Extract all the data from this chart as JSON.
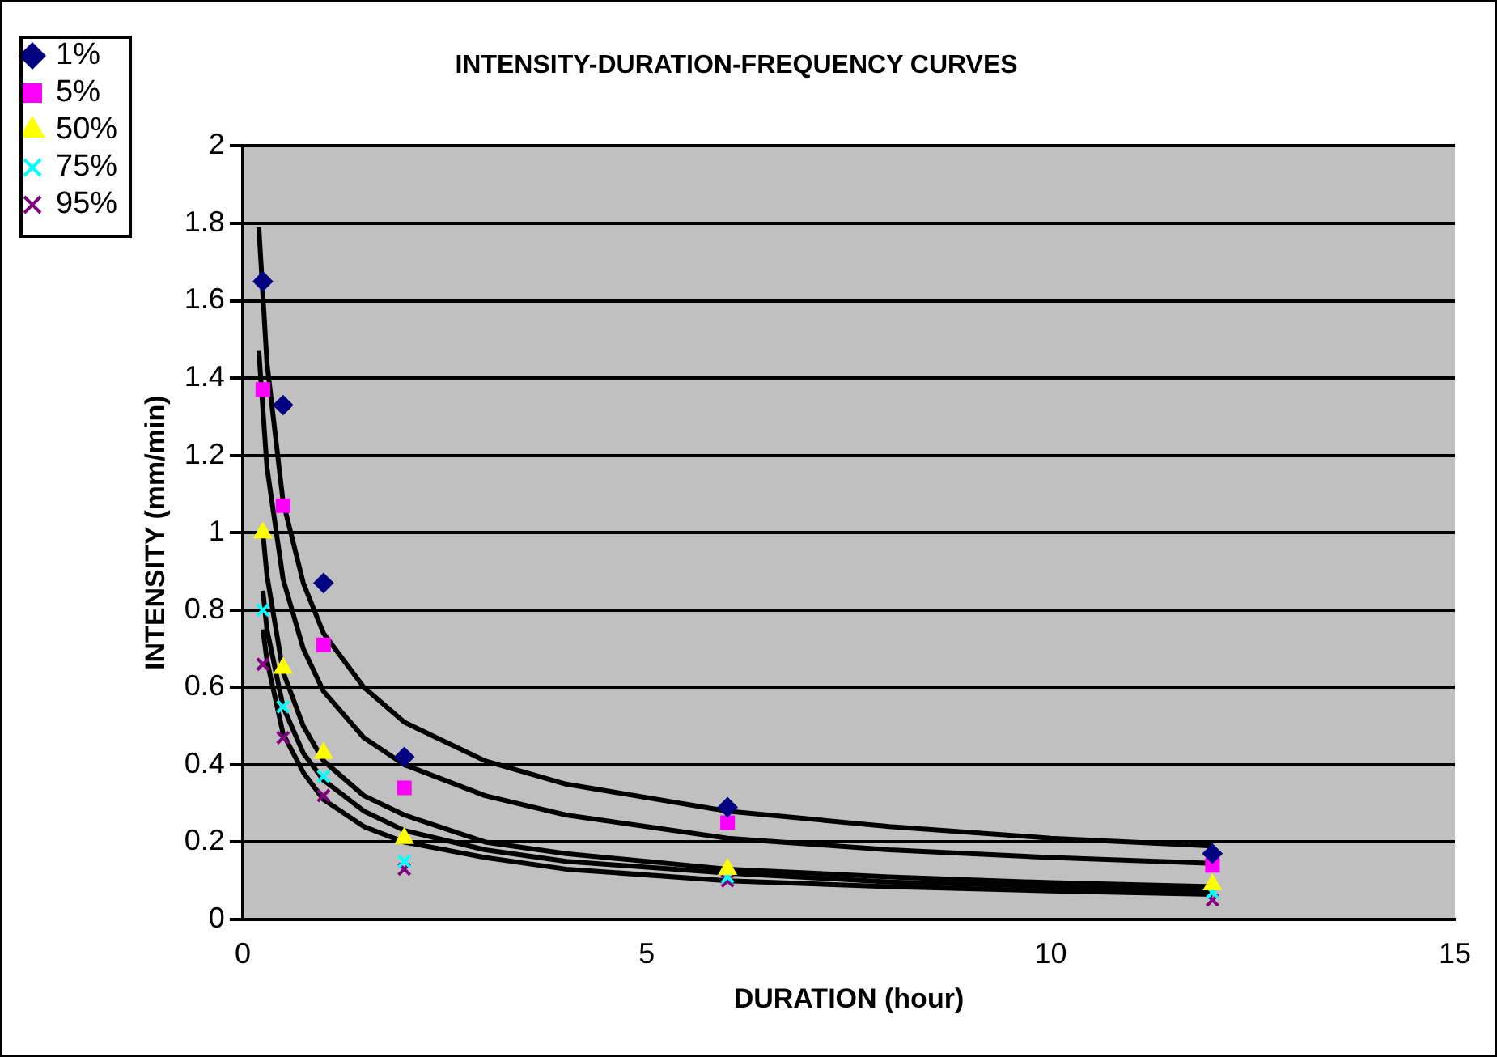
{
  "chart_data": {
    "type": "scatter",
    "title": "INTENSITY-DURATION-FREQUENCY CURVES",
    "xlabel": "DURATION (hour)",
    "ylabel": "INTENSITY (mm/min)",
    "xlim": [
      0,
      15
    ],
    "xticks": [
      0,
      5,
      10,
      15
    ],
    "ylim": [
      0,
      2
    ],
    "yticks": [
      0,
      0.2,
      0.4,
      0.6,
      0.8,
      1,
      1.2,
      1.4,
      1.6,
      1.8,
      2
    ],
    "grid": "y",
    "legend": "top left",
    "series": [
      {
        "name": "1%",
        "marker": "diamond",
        "color": "#000080",
        "x": [
          0.25,
          0.5,
          1,
          2,
          6,
          12
        ],
        "values": [
          1.65,
          1.33,
          0.87,
          0.42,
          0.29,
          0.17
        ]
      },
      {
        "name": "5%",
        "marker": "square",
        "color": "#ff00ff",
        "x": [
          0.25,
          0.5,
          1,
          2,
          6,
          12
        ],
        "values": [
          1.37,
          1.07,
          0.71,
          0.34,
          0.25,
          0.14
        ]
      },
      {
        "name": "50%",
        "marker": "triangle",
        "color": "#ffff00",
        "x": [
          0.25,
          0.5,
          1,
          2,
          6,
          12
        ],
        "values": [
          1.0,
          0.65,
          0.43,
          0.21,
          0.13,
          0.09
        ]
      },
      {
        "name": "75%",
        "marker": "cross",
        "color": "#00ffff",
        "x": [
          0.25,
          0.5,
          1,
          2,
          6,
          12
        ],
        "values": [
          0.8,
          0.55,
          0.37,
          0.15,
          0.11,
          0.07
        ]
      },
      {
        "name": "95%",
        "marker": "cross",
        "color": "#800080",
        "x": [
          0.25,
          0.5,
          1,
          2,
          6,
          12
        ],
        "values": [
          0.66,
          0.47,
          0.32,
          0.13,
          0.1,
          0.05
        ]
      },
      {
        "type": "line",
        "marker": "none",
        "color": "#000000",
        "x": [
          0.2,
          0.3,
          0.5,
          0.75,
          1,
          1.5,
          2,
          3,
          4,
          6,
          8,
          10,
          12
        ],
        "values": [
          1.79,
          1.44,
          1.08,
          0.87,
          0.74,
          0.6,
          0.51,
          0.41,
          0.35,
          0.28,
          0.24,
          0.21,
          0.19
        ]
      },
      {
        "type": "line",
        "marker": "none",
        "color": "#000000",
        "x": [
          0.2,
          0.3,
          0.5,
          0.75,
          1,
          1.5,
          2,
          3,
          4,
          6,
          8,
          10,
          12
        ],
        "values": [
          1.47,
          1.17,
          0.88,
          0.7,
          0.59,
          0.47,
          0.4,
          0.32,
          0.27,
          0.21,
          0.18,
          0.16,
          0.145
        ]
      },
      {
        "type": "line",
        "marker": "none",
        "color": "#000000",
        "x": [
          0.25,
          0.3,
          0.5,
          0.75,
          1,
          1.5,
          2,
          3,
          4,
          6,
          8,
          10,
          12
        ],
        "values": [
          1.0,
          0.89,
          0.64,
          0.5,
          0.41,
          0.32,
          0.27,
          0.2,
          0.17,
          0.13,
          0.11,
          0.095,
          0.085
        ]
      },
      {
        "type": "line",
        "marker": "none",
        "color": "#000000",
        "x": [
          0.25,
          0.3,
          0.5,
          0.75,
          1,
          1.5,
          2,
          3,
          4,
          6,
          8,
          10,
          12
        ],
        "values": [
          0.85,
          0.75,
          0.55,
          0.43,
          0.36,
          0.28,
          0.23,
          0.18,
          0.15,
          0.12,
          0.097,
          0.085,
          0.075
        ]
      },
      {
        "type": "line",
        "marker": "none",
        "color": "#000000",
        "x": [
          0.25,
          0.3,
          0.5,
          0.75,
          1,
          1.5,
          2,
          3,
          4,
          6,
          8,
          10,
          12
        ],
        "values": [
          0.75,
          0.67,
          0.48,
          0.38,
          0.31,
          0.24,
          0.2,
          0.16,
          0.13,
          0.1,
          0.085,
          0.074,
          0.065
        ]
      }
    ]
  }
}
